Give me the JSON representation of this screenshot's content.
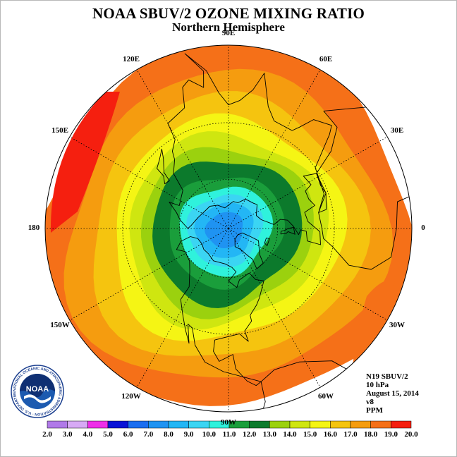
{
  "title": "NOAA SBUV/2 OZONE MIXING RATIO",
  "subtitle": "Northern Hemisphere",
  "longitude_labels": [
    {
      "text": "90E",
      "lon": 90
    },
    {
      "text": "60E",
      "lon": 60
    },
    {
      "text": "30E",
      "lon": 30
    },
    {
      "text": "0",
      "lon": 0
    },
    {
      "text": "30W",
      "lon": -30
    },
    {
      "text": "60W",
      "lon": -60
    },
    {
      "text": "90W",
      "lon": -90
    },
    {
      "text": "120W",
      "lon": -120
    },
    {
      "text": "150W",
      "lon": -150
    },
    {
      "text": "180",
      "lon": 180
    },
    {
      "text": "150E",
      "lon": 150
    },
    {
      "text": "120E",
      "lon": 120
    }
  ],
  "info": {
    "instrument": "N19 SBUV/2",
    "level": "10 hPa",
    "date": "August 15, 2014",
    "version": "v8",
    "units": "PPM"
  },
  "logo": {
    "text": "NOAA",
    "ring_text": "NATIONAL OCEANIC AND ATMOSPHERIC ADMINISTRATION · U.S. DEPARTMENT OF COMMERCE"
  },
  "colorbar": {
    "labels": [
      "2.0",
      "3.0",
      "4.0",
      "5.0",
      "6.0",
      "7.0",
      "8.0",
      "9.0",
      "10.0",
      "11.0",
      "12.0",
      "13.0",
      "14.0",
      "15.0",
      "16.0",
      "17.0",
      "18.0",
      "19.0",
      "20.0"
    ],
    "colors": [
      "#b079e8",
      "#d7aaf5",
      "#ee2ee8",
      "#0a13d6",
      "#1b6ef0",
      "#1f93f2",
      "#23b6f5",
      "#3bd5f3",
      "#2ff2dc",
      "#1a9e3b",
      "#0c7a2c",
      "#9bd10e",
      "#cfe610",
      "#f5f514",
      "#f5c40f",
      "#f59c0f",
      "#f57018",
      "#f51f0f",
      "#8c5b3d"
    ]
  },
  "chart_data": {
    "type": "map",
    "projection": "north-polar-stereographic",
    "variable": "ozone mixing ratio",
    "units": "PPM",
    "pressure_level": "10 hPa",
    "date": "August 15, 2014",
    "contour_levels": [
      2,
      3,
      4,
      5,
      6,
      7,
      8,
      9,
      10,
      11,
      12,
      13,
      14,
      15,
      16,
      17,
      18,
      19,
      20
    ],
    "field_description": "minimum ~6-8 ppm near the North Pole, increasing radially to 17-19 ppm at the equator"
  }
}
